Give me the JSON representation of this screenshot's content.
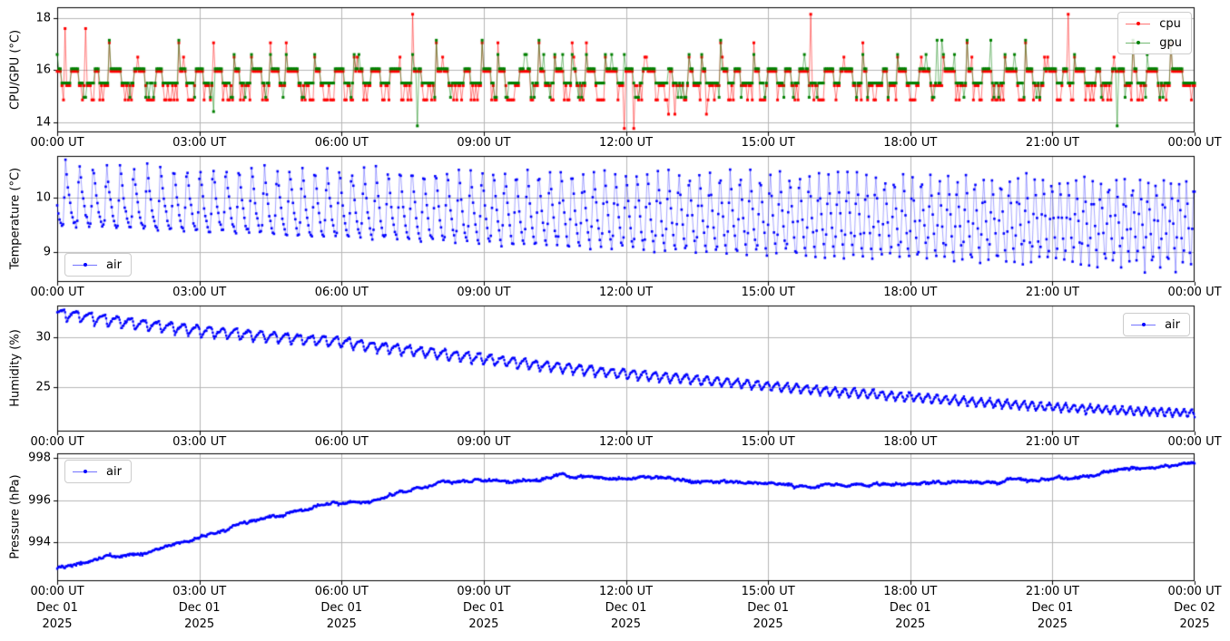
{
  "figure": {
    "background": "#ffffff",
    "grid_color": "#b6b6b6",
    "spine_color": "#000000",
    "accent_blue": "#0000ff",
    "accent_red": "#ff0000",
    "accent_green": "#008000"
  },
  "x_axis": {
    "span_hours": [
      0,
      24
    ],
    "tick_hours": [
      0,
      3,
      6,
      9,
      12,
      15,
      18,
      21,
      24
    ],
    "tick_labels": [
      "00:00 UT",
      "03:00 UT",
      "06:00 UT",
      "09:00 UT",
      "12:00 UT",
      "15:00 UT",
      "18:00 UT",
      "21:00 UT",
      "00:00 UT"
    ],
    "bottom_date_labels": [
      "Dec 01",
      "Dec 01",
      "Dec 01",
      "Dec 01",
      "Dec 01",
      "Dec 01",
      "Dec 01",
      "Dec 01",
      "Dec 02"
    ],
    "bottom_year_labels": [
      "2025",
      "2025",
      "2025",
      "2025",
      "2025",
      "2025",
      "2025",
      "2025",
      "2025"
    ]
  },
  "chart_data": [
    {
      "type": "line",
      "panel": "cpu-gpu-temperature",
      "ylabel": "CPU/GPU (°C)",
      "ylim": [
        13.6,
        18.42
      ],
      "yticks": [
        14,
        16,
        18
      ],
      "ytick_labels": [
        "14",
        "16",
        "18"
      ],
      "grid": true,
      "legend": {
        "position": "top-right",
        "entries": [
          {
            "label": "cpu",
            "color": "#ff0000"
          },
          {
            "label": "gpu",
            "color": "#008000"
          }
        ]
      },
      "description": "Quantized sensor steps of 0.55 C between ~13.9 and 18.1; both series hover at 15.4-16.1 with plateaus at 16, dips to 14.9, spikes to 16.5-17.1, rare cpu spike 18.1 and dips 13.9-14.4",
      "gen": {
        "sample_minutes": 2,
        "level_step": 0.55,
        "cpu_base": 13.75,
        "gpu_base": 13.85,
        "high_k": 4,
        "low_k": 3,
        "high_dwell": [
          3,
          8
        ],
        "low_dwell": [
          4,
          10
        ],
        "low_dip_prob_cpu": 0.45,
        "low_dip_prob_gpu": 0.18,
        "spike_on_rise_prob": 0.55,
        "spike_k": [
          5,
          6
        ],
        "mid_spike_prob": 0.05,
        "cpu_up_extreme_prob": 0.006,
        "cpu_up_k": [
          7,
          8
        ],
        "cpu_down_extreme_prob": 0.008,
        "down_k": [
          0,
          1
        ],
        "gpu_up_extreme_prob": 0.003,
        "gpu_down_extreme_prob": 0.004,
        "seed": 3
      }
    },
    {
      "type": "line",
      "panel": "air-temperature",
      "ylabel": "Temperature (°C)",
      "ylim": [
        8.45,
        10.77
      ],
      "yticks": [
        9,
        10
      ],
      "ytick_labels": [
        "9",
        "10"
      ],
      "grid": true,
      "legend": {
        "position": "bottom-left",
        "entries": [
          {
            "label": "air",
            "color": "#0000ff"
          }
        ]
      },
      "description": "Sawtooth thermal cycles: fast rise, slow decay; period shrinks 17.5->9.5 min over the day; peaks 10.7->10.4, troughs 9.5->8.6",
      "gen": {
        "sample_minutes": 1.5,
        "phase0": 0.55,
        "period_min_start": 17.5,
        "period_min_end": 9.5,
        "rise_frac_start": 0.15,
        "rise_frac_end": 0.42,
        "decay_exp_start": 2.2,
        "decay_exp_end": 1.0,
        "max_start": 10.68,
        "max_end": 10.38,
        "min_start": 9.5,
        "min_end": 8.62,
        "jitter": 0.025,
        "seed": 7
      }
    },
    {
      "type": "line",
      "panel": "humidity",
      "ylabel": "Humidity (%)",
      "ylim": [
        20.5,
        33.2
      ],
      "yticks": [
        25,
        30
      ],
      "ytick_labels": [
        "25",
        "30"
      ],
      "grid": true,
      "legend": {
        "position": "top-right",
        "entries": [
          {
            "label": "air",
            "color": "#0000ff"
          }
        ]
      },
      "description": "Declines 32.4% -> 22.4% with inverted sawtooth dips (~1%) anti-phased with air temperature cycles",
      "gen": {
        "sample_minutes": 1,
        "trend_points": [
          [
            0,
            32.35
          ],
          [
            1.5,
            31.4
          ],
          [
            3,
            30.6
          ],
          [
            4.5,
            30.0
          ],
          [
            6,
            29.45
          ],
          [
            7.5,
            28.6
          ],
          [
            9,
            27.8
          ],
          [
            10.5,
            27.0
          ],
          [
            12,
            26.3
          ],
          [
            13.5,
            25.7
          ],
          [
            15,
            25.1
          ],
          [
            16.5,
            24.5
          ],
          [
            18,
            24.0
          ],
          [
            19.5,
            23.45
          ],
          [
            21,
            23.0
          ],
          [
            22.5,
            22.65
          ],
          [
            24,
            22.4
          ]
        ],
        "osc_amp_start": 1.15,
        "osc_amp_end": 0.85,
        "osc_center": 0.45,
        "lag_minutes": 1.5,
        "jitter": 0.06,
        "seed": 11
      }
    },
    {
      "type": "line",
      "panel": "pressure",
      "ylabel": "Pressure (hPa)",
      "ylim": [
        992.17,
        998.21
      ],
      "yticks": [
        994,
        996,
        998
      ],
      "ytick_labels": [
        "994",
        "996",
        "998"
      ],
      "grid": true,
      "legend": {
        "position": "top-left",
        "entries": [
          {
            "label": "air",
            "color": "#0000ff"
          }
        ]
      },
      "description": "Rises 992.8 -> ~997.0 hPa by 09:00, plateau ~997 with shallow dip to 996.7 near 15:30, climbs to 997.7 by midnight",
      "gen": {
        "sample_minutes": 1,
        "trend_points": [
          [
            0,
            992.75
          ],
          [
            0.5,
            993.0
          ],
          [
            1,
            993.2
          ],
          [
            1.5,
            993.35
          ],
          [
            2,
            993.55
          ],
          [
            2.5,
            993.85
          ],
          [
            3,
            994.25
          ],
          [
            3.5,
            994.6
          ],
          [
            4,
            994.9
          ],
          [
            4.5,
            995.15
          ],
          [
            5,
            995.45
          ],
          [
            5.5,
            995.75
          ],
          [
            6,
            995.9
          ],
          [
            6.5,
            995.85
          ],
          [
            7,
            996.15
          ],
          [
            7.5,
            996.45
          ],
          [
            8,
            996.7
          ],
          [
            8.5,
            996.85
          ],
          [
            9,
            996.9
          ],
          [
            9.5,
            997.0
          ],
          [
            10,
            996.95
          ],
          [
            10.5,
            997.05
          ],
          [
            11,
            997.1
          ],
          [
            11.5,
            997.0
          ],
          [
            12,
            997.05
          ],
          [
            12.5,
            997.0
          ],
          [
            13,
            996.95
          ],
          [
            13.5,
            996.9
          ],
          [
            14,
            996.9
          ],
          [
            14.5,
            996.8
          ],
          [
            15,
            996.75
          ],
          [
            15.5,
            996.68
          ],
          [
            16,
            996.65
          ],
          [
            16.5,
            996.75
          ],
          [
            17,
            996.8
          ],
          [
            17.5,
            996.75
          ],
          [
            18,
            996.85
          ],
          [
            18.5,
            996.8
          ],
          [
            19,
            996.85
          ],
          [
            19.5,
            996.9
          ],
          [
            20,
            996.85
          ],
          [
            20.5,
            996.92
          ],
          [
            21,
            997.0
          ],
          [
            21.5,
            997.1
          ],
          [
            22,
            997.25
          ],
          [
            22.5,
            997.4
          ],
          [
            23,
            997.5
          ],
          [
            23.5,
            997.6
          ],
          [
            24,
            997.72
          ]
        ],
        "ar": 0.93,
        "ar_sigma": 0.02,
        "jitter": 0.025,
        "seed": 13
      }
    }
  ]
}
